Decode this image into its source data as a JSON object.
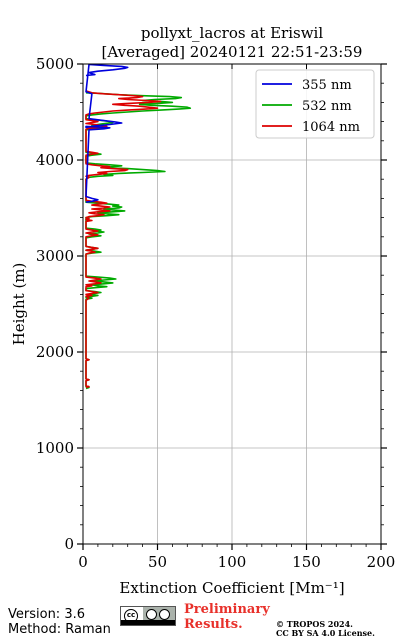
{
  "chart_data": {
    "type": "line",
    "title": "pollyxt_lacros at Eriswil",
    "subtitle": "[Averaged] 20240121 22:51-23:59",
    "xlabel": "Extinction Coefficient [Mm⁻¹]",
    "ylabel": "Height (m)",
    "xlim": [
      0,
      200
    ],
    "ylim": [
      0,
      5000
    ],
    "xticks": [
      "0",
      "50",
      "100",
      "150",
      "200"
    ],
    "yticks": [
      "0",
      "1000",
      "2000",
      "3000",
      "4000",
      "5000"
    ],
    "grid": true,
    "legend_position": "top-right",
    "series": [
      {
        "name": "355 nm",
        "color": "#0000dd",
        "points": [
          [
            2,
            4880
          ],
          [
            8,
            4890
          ],
          [
            4,
            4910
          ],
          [
            10,
            4925
          ],
          [
            20,
            4940
          ],
          [
            28,
            4955
          ],
          [
            30,
            4965
          ],
          [
            26,
            4975
          ],
          [
            14,
            4985
          ],
          [
            4,
            4995
          ],
          [
            2,
            4710
          ],
          [
            6,
            4690
          ],
          [
            4,
            4430
          ],
          [
            14,
            4410
          ],
          [
            22,
            4395
          ],
          [
            26,
            4385
          ],
          [
            18,
            4370
          ],
          [
            8,
            4355
          ],
          [
            2,
            4340
          ],
          [
            2,
            4350
          ],
          [
            10,
            4345
          ],
          [
            18,
            4335
          ],
          [
            14,
            4325
          ],
          [
            4,
            4315
          ],
          [
            2,
            3620
          ],
          [
            6,
            3600
          ],
          [
            10,
            3585
          ],
          [
            6,
            3570
          ],
          [
            2,
            3560
          ]
        ]
      },
      {
        "name": "532 nm",
        "color": "#00aa00",
        "points": [
          [
            2,
            4700
          ],
          [
            10,
            4695
          ],
          [
            24,
            4680
          ],
          [
            40,
            4670
          ],
          [
            58,
            4660
          ],
          [
            66,
            4650
          ],
          [
            62,
            4640
          ],
          [
            48,
            4630
          ],
          [
            40,
            4620
          ],
          [
            52,
            4610
          ],
          [
            60,
            4600
          ],
          [
            50,
            4590
          ],
          [
            38,
            4580
          ],
          [
            46,
            4570
          ],
          [
            60,
            4560
          ],
          [
            70,
            4550
          ],
          [
            72,
            4540
          ],
          [
            64,
            4530
          ],
          [
            52,
            4520
          ],
          [
            40,
            4510
          ],
          [
            30,
            4500
          ],
          [
            20,
            4490
          ],
          [
            12,
            4480
          ],
          [
            6,
            4470
          ],
          [
            2,
            4460
          ],
          [
            2,
            4430
          ],
          [
            8,
            4420
          ],
          [
            16,
            4405
          ],
          [
            20,
            4390
          ],
          [
            12,
            4375
          ],
          [
            6,
            4360
          ],
          [
            10,
            4345
          ],
          [
            16,
            4335
          ],
          [
            8,
            4325
          ],
          [
            2,
            4315
          ],
          [
            2,
            4080
          ],
          [
            8,
            4070
          ],
          [
            12,
            4060
          ],
          [
            6,
            4050
          ],
          [
            2,
            4040
          ],
          [
            2,
            3970
          ],
          [
            8,
            3960
          ],
          [
            18,
            3950
          ],
          [
            26,
            3940
          ],
          [
            20,
            3930
          ],
          [
            14,
            3920
          ],
          [
            30,
            3910
          ],
          [
            50,
            3890
          ],
          [
            55,
            3880
          ],
          [
            40,
            3870
          ],
          [
            24,
            3860
          ],
          [
            14,
            3850
          ],
          [
            20,
            3840
          ],
          [
            10,
            3830
          ],
          [
            4,
            3820
          ],
          [
            2,
            3800
          ],
          [
            2,
            3560
          ],
          [
            10,
            3550
          ],
          [
            18,
            3540
          ],
          [
            24,
            3530
          ],
          [
            20,
            3520
          ],
          [
            26,
            3510
          ],
          [
            24,
            3500
          ],
          [
            14,
            3490
          ],
          [
            20,
            3480
          ],
          [
            28,
            3470
          ],
          [
            20,
            3460
          ],
          [
            10,
            3450
          ],
          [
            16,
            3440
          ],
          [
            24,
            3430
          ],
          [
            16,
            3420
          ],
          [
            6,
            3410
          ],
          [
            2,
            3400
          ],
          [
            2,
            3290
          ],
          [
            8,
            3280
          ],
          [
            12,
            3270
          ],
          [
            8,
            3260
          ],
          [
            14,
            3250
          ],
          [
            10,
            3240
          ],
          [
            4,
            3230
          ],
          [
            8,
            3220
          ],
          [
            12,
            3210
          ],
          [
            6,
            3200
          ],
          [
            2,
            3190
          ],
          [
            2,
            3100
          ],
          [
            6,
            3090
          ],
          [
            10,
            3080
          ],
          [
            6,
            3070
          ],
          [
            2,
            3060
          ],
          [
            8,
            3050
          ],
          [
            12,
            3040
          ],
          [
            6,
            3030
          ],
          [
            2,
            3020
          ],
          [
            2,
            2790
          ],
          [
            10,
            2780
          ],
          [
            18,
            2770
          ],
          [
            22,
            2760
          ],
          [
            14,
            2750
          ],
          [
            8,
            2740
          ],
          [
            14,
            2730
          ],
          [
            20,
            2720
          ],
          [
            14,
            2710
          ],
          [
            6,
            2700
          ],
          [
            10,
            2690
          ],
          [
            16,
            2680
          ],
          [
            8,
            2670
          ],
          [
            2,
            2660
          ],
          [
            2,
            2640
          ],
          [
            8,
            2630
          ],
          [
            12,
            2620
          ],
          [
            8,
            2610
          ],
          [
            4,
            2600
          ],
          [
            10,
            2590
          ],
          [
            6,
            2580
          ],
          [
            2,
            2570
          ],
          [
            6,
            2560
          ],
          [
            2,
            2550
          ],
          [
            2,
            1930
          ],
          [
            4,
            1920
          ],
          [
            2,
            1910
          ],
          [
            2,
            1720
          ],
          [
            4,
            1710
          ],
          [
            2,
            1700
          ],
          [
            2,
            1640
          ],
          [
            4,
            1630
          ],
          [
            2,
            1620
          ]
        ]
      },
      {
        "name": "1064 nm",
        "color": "#dd0000",
        "points": [
          [
            2,
            4720
          ],
          [
            6,
            4700
          ],
          [
            14,
            4690
          ],
          [
            24,
            4680
          ],
          [
            34,
            4670
          ],
          [
            40,
            4660
          ],
          [
            36,
            4650
          ],
          [
            24,
            4640
          ],
          [
            30,
            4630
          ],
          [
            42,
            4620
          ],
          [
            52,
            4610
          ],
          [
            44,
            4600
          ],
          [
            30,
            4590
          ],
          [
            20,
            4580
          ],
          [
            28,
            4570
          ],
          [
            38,
            4560
          ],
          [
            44,
            4550
          ],
          [
            50,
            4540
          ],
          [
            42,
            4530
          ],
          [
            30,
            4520
          ],
          [
            20,
            4510
          ],
          [
            14,
            4500
          ],
          [
            8,
            4490
          ],
          [
            4,
            4480
          ],
          [
            2,
            4470
          ],
          [
            2,
            4420
          ],
          [
            6,
            4410
          ],
          [
            10,
            4400
          ],
          [
            6,
            4390
          ],
          [
            2,
            4380
          ],
          [
            8,
            4370
          ],
          [
            12,
            4360
          ],
          [
            16,
            4350
          ],
          [
            10,
            4340
          ],
          [
            4,
            4330
          ],
          [
            2,
            4320
          ],
          [
            2,
            4090
          ],
          [
            6,
            4080
          ],
          [
            10,
            4070
          ],
          [
            6,
            4060
          ],
          [
            2,
            4050
          ],
          [
            2,
            3960
          ],
          [
            6,
            3950
          ],
          [
            12,
            3940
          ],
          [
            18,
            3930
          ],
          [
            12,
            3920
          ],
          [
            20,
            3910
          ],
          [
            30,
            3900
          ],
          [
            28,
            3890
          ],
          [
            18,
            3880
          ],
          [
            10,
            3870
          ],
          [
            16,
            3860
          ],
          [
            10,
            3850
          ],
          [
            4,
            3840
          ],
          [
            2,
            3830
          ],
          [
            4,
            3820
          ],
          [
            2,
            3800
          ],
          [
            2,
            3580
          ],
          [
            6,
            3570
          ],
          [
            12,
            3560
          ],
          [
            16,
            3550
          ],
          [
            10,
            3540
          ],
          [
            6,
            3530
          ],
          [
            12,
            3520
          ],
          [
            18,
            3510
          ],
          [
            14,
            3500
          ],
          [
            6,
            3490
          ],
          [
            12,
            3480
          ],
          [
            18,
            3470
          ],
          [
            10,
            3460
          ],
          [
            4,
            3450
          ],
          [
            8,
            3440
          ],
          [
            14,
            3430
          ],
          [
            10,
            3420
          ],
          [
            4,
            3410
          ],
          [
            2,
            3400
          ],
          [
            4,
            3390
          ],
          [
            2,
            3380
          ],
          [
            6,
            3370
          ],
          [
            2,
            3360
          ],
          [
            2,
            3280
          ],
          [
            6,
            3270
          ],
          [
            10,
            3260
          ],
          [
            6,
            3250
          ],
          [
            2,
            3240
          ],
          [
            6,
            3230
          ],
          [
            10,
            3220
          ],
          [
            6,
            3210
          ],
          [
            2,
            3200
          ],
          [
            2,
            3100
          ],
          [
            6,
            3090
          ],
          [
            10,
            3080
          ],
          [
            6,
            3070
          ],
          [
            2,
            3060
          ],
          [
            6,
            3050
          ],
          [
            8,
            3040
          ],
          [
            4,
            3030
          ],
          [
            2,
            3020
          ],
          [
            2,
            2780
          ],
          [
            8,
            2770
          ],
          [
            12,
            2760
          ],
          [
            8,
            2750
          ],
          [
            4,
            2740
          ],
          [
            8,
            2730
          ],
          [
            12,
            2720
          ],
          [
            8,
            2710
          ],
          [
            2,
            2700
          ],
          [
            6,
            2690
          ],
          [
            2,
            2680
          ],
          [
            2,
            2640
          ],
          [
            6,
            2630
          ],
          [
            10,
            2620
          ],
          [
            6,
            2610
          ],
          [
            2,
            2600
          ],
          [
            6,
            2590
          ],
          [
            2,
            2580
          ],
          [
            4,
            2560
          ],
          [
            2,
            2540
          ],
          [
            2,
            1930
          ],
          [
            4,
            1920
          ],
          [
            2,
            1910
          ],
          [
            2,
            1720
          ],
          [
            4,
            1710
          ],
          [
            2,
            1700
          ],
          [
            2,
            1650
          ],
          [
            4,
            1640
          ],
          [
            2,
            1630
          ]
        ]
      }
    ]
  },
  "footer": {
    "version": "Version: 3.6",
    "method": "Method: Raman",
    "preliminary_line1": "Preliminary",
    "preliminary_line2": "Results.",
    "copyright_line1": "© TROPOS 2024.",
    "copyright_line2": "CC BY SA 4.0 License.",
    "license_badge_text": "cc"
  }
}
